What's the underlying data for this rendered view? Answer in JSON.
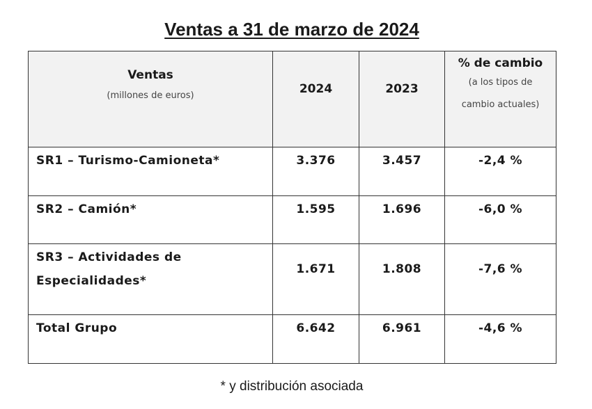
{
  "title": "Ventas a 31 de marzo de 2024",
  "table": {
    "header": {
      "col1_title": "Ventas",
      "col1_subtitle": "(millones de euros)",
      "col2": "2024",
      "col3": "2023",
      "col4_title": "% de cambio",
      "col4_subtitle": "(a los tipos de cambio actuales)"
    },
    "rows": [
      {
        "label": "SR1 – Turismo-Camioneta*",
        "v2024": "3.376",
        "v2023": "3.457",
        "change": "-2,4 %"
      },
      {
        "label": "SR2 – Camión*",
        "v2024": "1.595",
        "v2023": "1.696",
        "change": "-6,0 %"
      },
      {
        "label": "SR3 – Actividades de Especialidades*",
        "v2024": "1.671",
        "v2023": "1.808",
        "change": "-7,6 %"
      },
      {
        "label": "Total Grupo",
        "v2024": "6.642",
        "v2023": "6.961",
        "change": "-4,6 %"
      }
    ]
  },
  "footnote": "* y distribución asociada"
}
